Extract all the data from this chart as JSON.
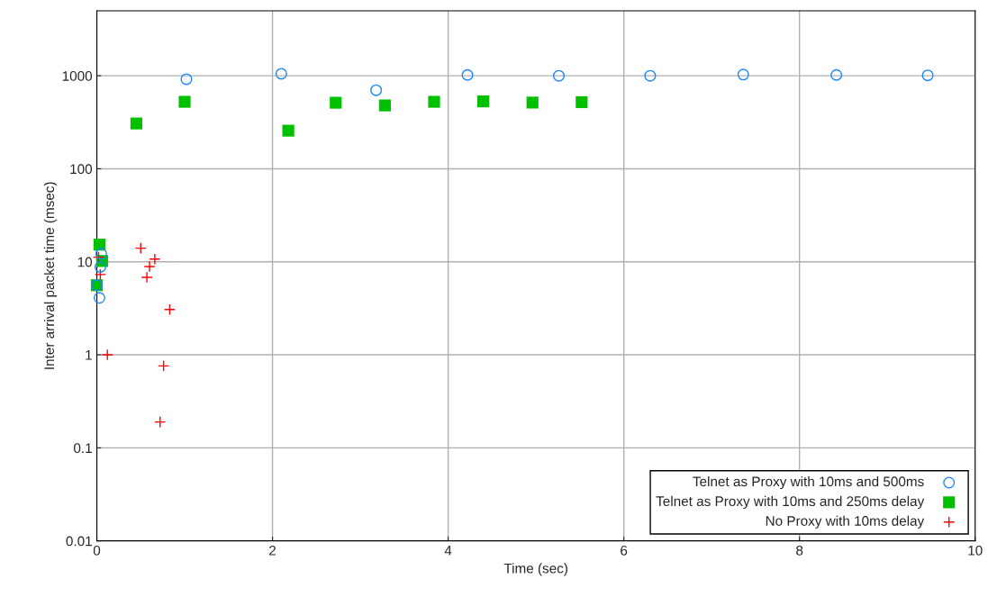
{
  "chart_data": {
    "type": "scatter",
    "xlabel": "Time (sec)",
    "ylabel": "Inter arrival packet time (msec)",
    "log": "y",
    "grid": true,
    "legend": "bottom right",
    "xlim": [
      0,
      10
    ],
    "xticks": [
      0,
      2,
      4,
      6,
      8,
      10
    ],
    "ylim": [
      0.01,
      5000
    ],
    "yticks": [
      {
        "value": 0.01,
        "label": "0.01"
      },
      {
        "value": 0.1,
        "label": "0.1"
      },
      {
        "value": 1,
        "label": "1"
      },
      {
        "value": 10,
        "label": "10"
      },
      {
        "value": 100,
        "label": "100"
      },
      {
        "value": 1000,
        "label": "1000"
      }
    ],
    "series": [
      {
        "name": "Telnet as Proxy with 10ms and 500ms",
        "color": "#1e88ff",
        "marker": "circle",
        "x": [
          0.05,
          0.04,
          0.0,
          0.03,
          1.02,
          2.1,
          3.18,
          4.22,
          5.26,
          6.3,
          7.36,
          8.42,
          9.46
        ],
        "values": [
          12.2,
          8.8,
          5.6,
          4.1,
          920,
          1050,
          700,
          1020,
          1000,
          1000,
          1030,
          1020,
          1010
        ]
      },
      {
        "name": "Telnet as Proxy with 10ms and 250ms delay",
        "color": "#00c000",
        "marker": "square",
        "x": [
          0.03,
          0.06,
          0.0,
          0.45,
          1.0,
          2.18,
          2.72,
          3.28,
          3.84,
          4.4,
          4.96,
          5.52
        ],
        "values": [
          15.3,
          10.2,
          5.6,
          307,
          525,
          257,
          513,
          480,
          525,
          530,
          515,
          520
        ]
      },
      {
        "name": "No Proxy with 10ms delay",
        "color": "#ff0000",
        "marker": "cross",
        "x": [
          0.02,
          0.04,
          0.12,
          0.5,
          0.57,
          0.6,
          0.66,
          0.72,
          0.76,
          0.83
        ],
        "values": [
          11.2,
          7.3,
          1.0,
          14.0,
          6.8,
          8.9,
          10.7,
          0.19,
          0.76,
          3.07
        ]
      }
    ]
  }
}
